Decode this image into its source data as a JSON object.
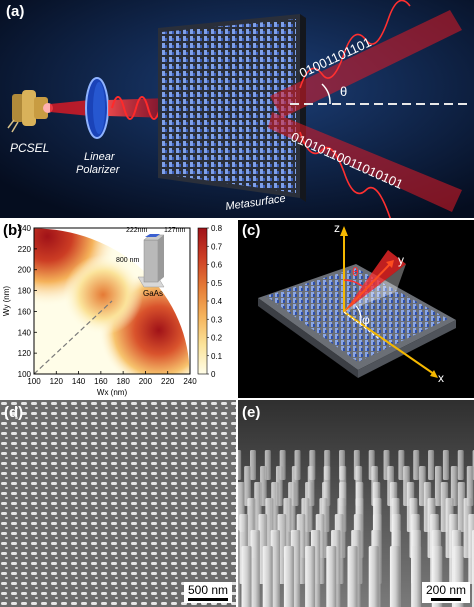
{
  "panels": {
    "a": {
      "tag": "(a)",
      "labels": {
        "source": "PCSEL",
        "polarizer_line1": "Linear",
        "polarizer_line2": "Polarizer",
        "metasurface": "Metasurface",
        "angle": "θ"
      },
      "beam_bits_upper": "01001101101",
      "beam_bits_lower": "01010110011010101",
      "colors": {
        "background": "#0b1c3a",
        "beam": "#e01a24",
        "metasurface": "#4a6dc9"
      }
    },
    "b": {
      "tag": "(b)",
      "inset": {
        "width_label": "222nm",
        "depth_label": "127nm",
        "height_label": "800 nm",
        "material": "GaAs"
      }
    },
    "c": {
      "tag": "(c)",
      "axes": {
        "z": "z",
        "y": "y",
        "x": "x",
        "polar": "θ",
        "azimuth": "φ"
      }
    },
    "d": {
      "tag": "(d)",
      "scale_label": "500 nm"
    },
    "e": {
      "tag": "(e)",
      "scale_label": "200 nm"
    }
  },
  "chart_data": {
    "type": "heatmap",
    "title": "",
    "xlabel": "Wx (nm)",
    "ylabel": "Wy (nm)",
    "xlim": [
      100,
      240
    ],
    "ylim": [
      100,
      240
    ],
    "x_ticks": [
      "100",
      "120",
      "140",
      "160",
      "180",
      "200",
      "220",
      "240"
    ],
    "y_ticks": [
      "100",
      "120",
      "140",
      "160",
      "180",
      "200",
      "220",
      "240"
    ],
    "colorbar": {
      "min": 0,
      "max": 0.8,
      "ticks": [
        "0",
        "0.1",
        "0.2",
        "0.3",
        "0.4",
        "0.5",
        "0.6",
        "0.7",
        "0.8"
      ]
    },
    "domain_boundary_radius_nm": 140,
    "hotspots": [
      {
        "x": 112,
        "y": 232,
        "value": 0.75
      },
      {
        "x": 212,
        "y": 142,
        "value": 0.75
      },
      {
        "x": 162,
        "y": 176,
        "value": 0.45
      }
    ],
    "diagonal_line": {
      "from": [
        100,
        100
      ],
      "to": [
        170,
        170
      ],
      "style": "dashed"
    },
    "marked_point": {
      "x": 127,
      "y": 222
    },
    "colormap": [
      "#fffde8",
      "#fbe39a",
      "#f5b25a",
      "#e57a35",
      "#cc3d24",
      "#a01218"
    ]
  }
}
